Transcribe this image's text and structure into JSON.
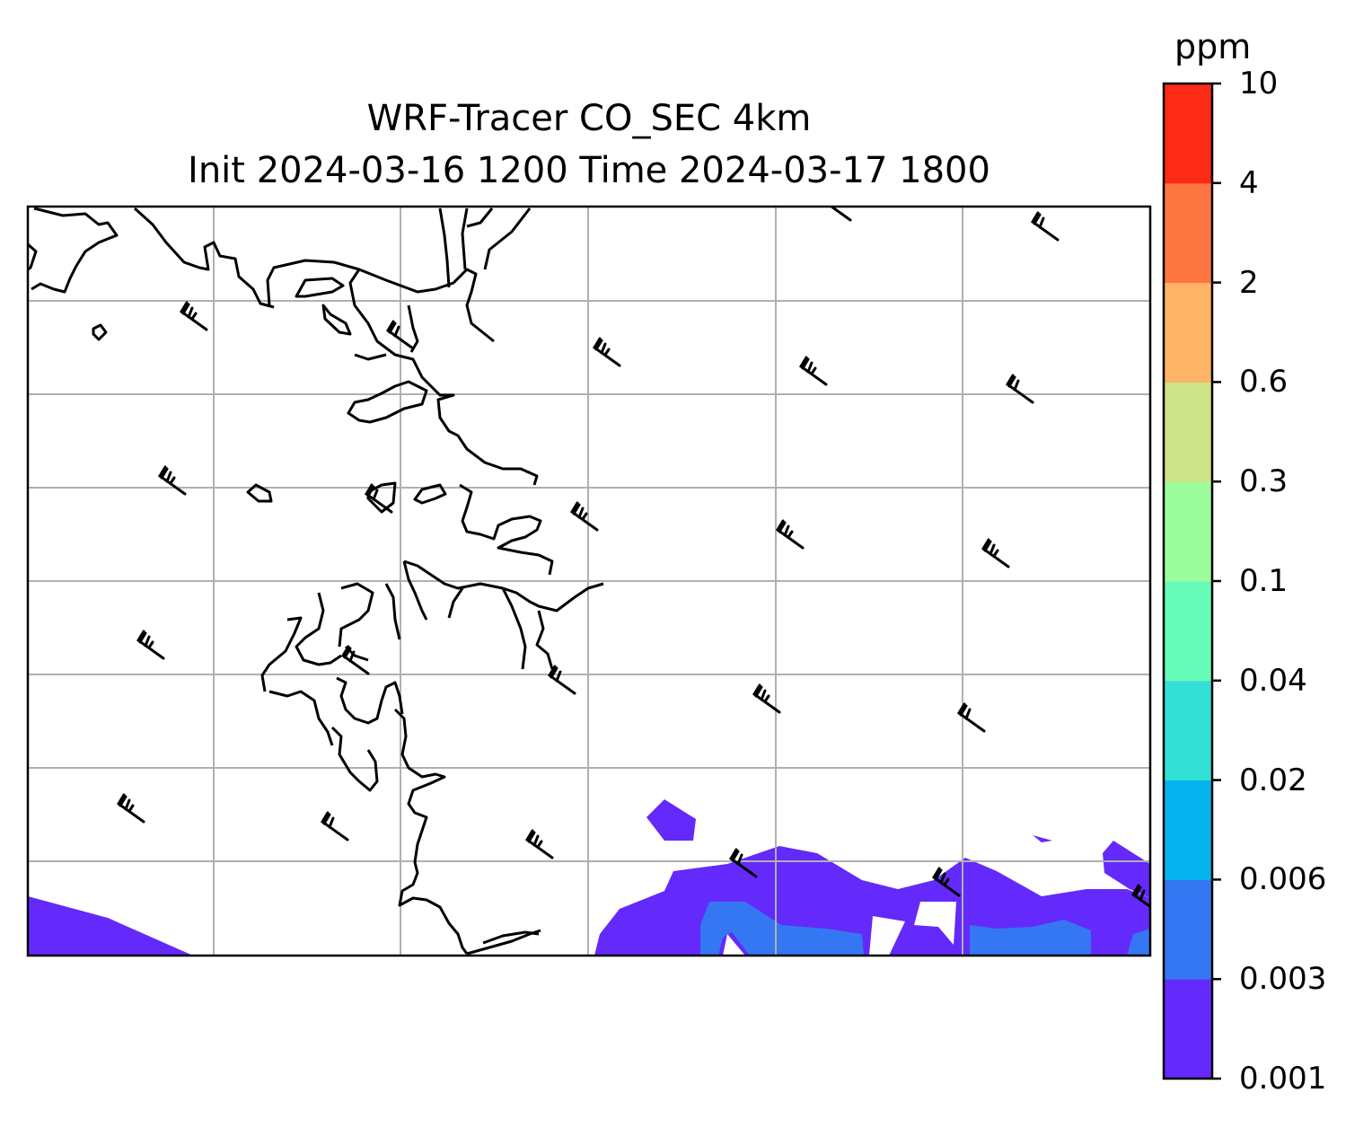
{
  "title": {
    "line1": "WRF-Tracer CO_SEC 4km",
    "line2": "Init 2024-03-16 1200 Time 2024-03-17 1800"
  },
  "colorbar": {
    "unit": "ppm",
    "levels": [
      "0.001",
      "0.003",
      "0.006",
      "0.02",
      "0.04",
      "0.1",
      "0.3",
      "0.6",
      "2",
      "4",
      "10"
    ],
    "colors": [
      "#6429fb",
      "#3577f3",
      "#05b4ee",
      "#33e0d6",
      "#68fcbb",
      "#9cfd9c",
      "#cfe388",
      "#fdb466",
      "#fd7540",
      "#fd2a16"
    ]
  },
  "map": {
    "gridlines": true,
    "coastline_color": "#000000",
    "grid_color": "#b0b0b0"
  }
}
